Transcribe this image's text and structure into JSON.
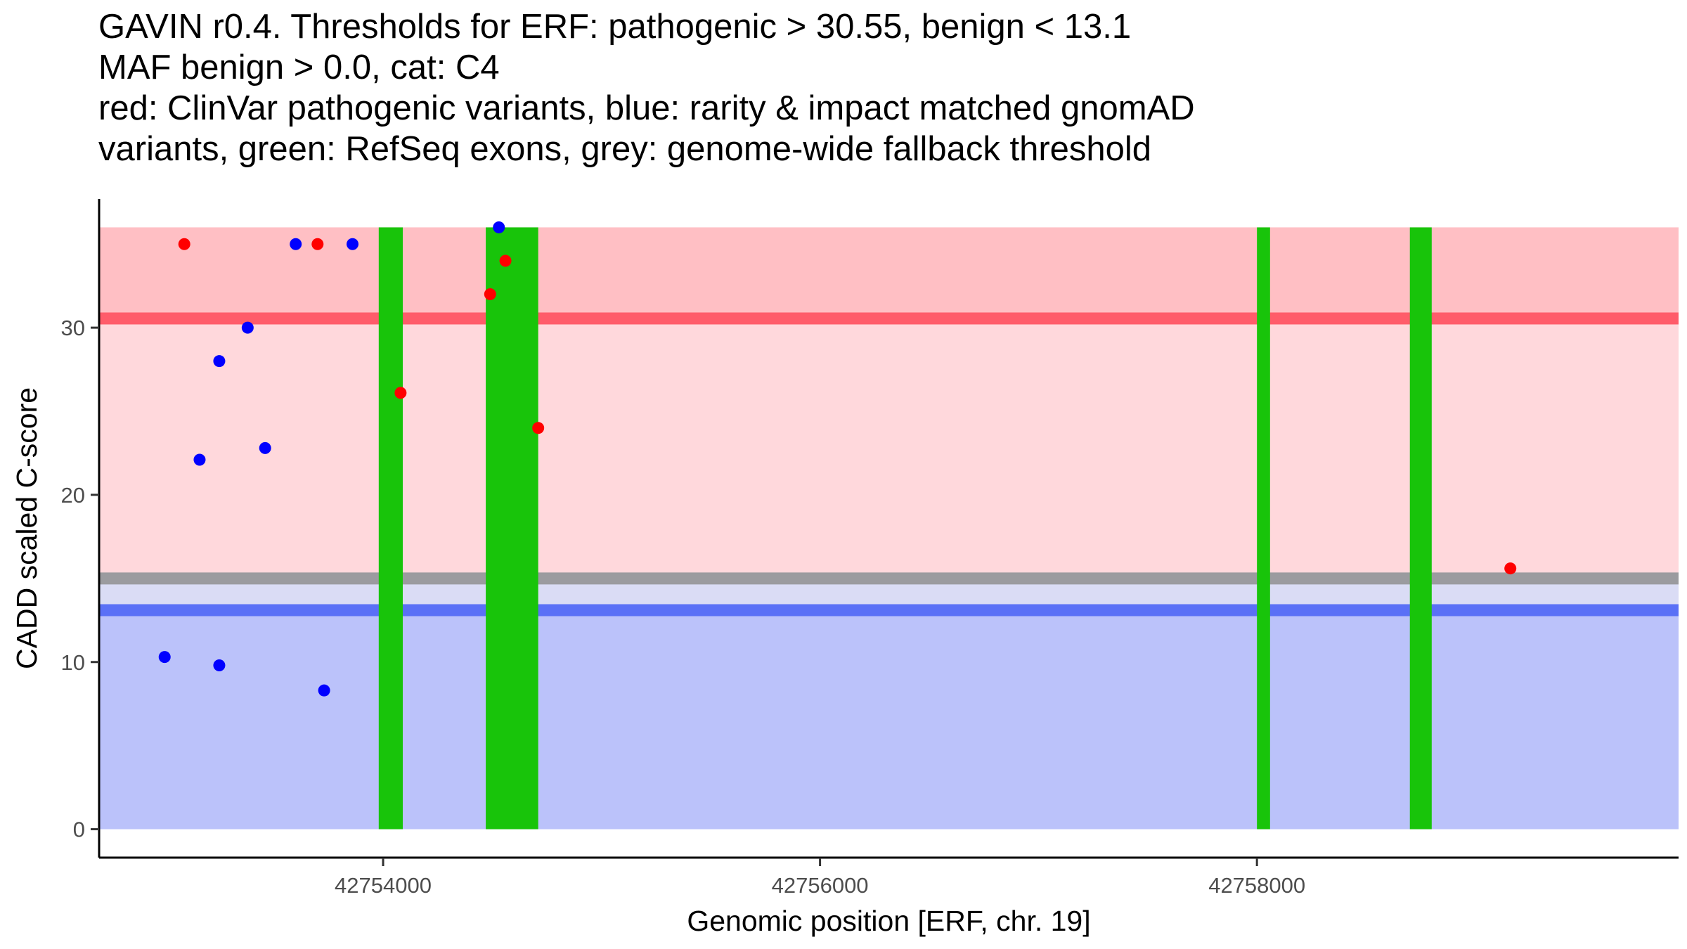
{
  "chart_data": {
    "type": "scatter",
    "title_lines": [
      "GAVIN r0.4. Thresholds for ERF: pathogenic > 30.55, benign < 13.1",
      "MAF benign > 0.0, cat: C4",
      "red: ClinVar pathogenic variants, blue: rarity & impact matched gnomAD",
      "variants, green: RefSeq exons, grey: genome-wide fallback threshold"
    ],
    "xlabel": "Genomic position [ERF, chr. 19]",
    "ylabel": "CADD scaled C-score",
    "xlim": [
      42752700,
      42759930
    ],
    "ylim": [
      -1.7,
      37.7
    ],
    "x_ticks": [
      42754000,
      42756000,
      42758000
    ],
    "x_tick_labels": [
      "42754000",
      "42756000",
      "42758000"
    ],
    "y_ticks": [
      0,
      10,
      20,
      30
    ],
    "y_tick_labels": [
      "0",
      "10",
      "20",
      "30"
    ],
    "regions": [
      {
        "name": "pathogenic-zone",
        "y_from": 30.55,
        "y_to": 36,
        "color": "#ffbfc4"
      },
      {
        "name": "uncertain-zone",
        "y_from": 15,
        "y_to": 30.55,
        "color": "#ffd8dc"
      },
      {
        "name": "gap-zone",
        "y_from": 13.1,
        "y_to": 15,
        "color": "#dadcf5"
      },
      {
        "name": "benign-zone",
        "y_from": 0,
        "y_to": 13.1,
        "color": "#bbc2fa"
      }
    ],
    "threshold_lines": [
      {
        "name": "genome-wide-fallback-threshold",
        "y": 15,
        "color": "#9b9b9f"
      },
      {
        "name": "benign-threshold",
        "y": 13.1,
        "color": "#5a70f6"
      },
      {
        "name": "pathogenic-threshold",
        "y": 30.55,
        "color": "#ff5c6a"
      }
    ],
    "exons": [
      {
        "start": 42753980,
        "end": 42754090
      },
      {
        "start": 42754470,
        "end": 42754710
      },
      {
        "start": 42758000,
        "end": 42758060
      },
      {
        "start": 42758700,
        "end": 42758800
      }
    ],
    "exon_color": "#18c40a",
    "series": [
      {
        "name": "ClinVar pathogenic variants",
        "color": "#ff0000",
        "points": [
          {
            "x": 42753090,
            "y": 35
          },
          {
            "x": 42753700,
            "y": 35
          },
          {
            "x": 42754080,
            "y": 26.1
          },
          {
            "x": 42754490,
            "y": 32
          },
          {
            "x": 42754560,
            "y": 34
          },
          {
            "x": 42754710,
            "y": 24
          },
          {
            "x": 42759160,
            "y": 15.6
          }
        ]
      },
      {
        "name": "rarity & impact matched gnomAD variants",
        "color": "#0000ff",
        "points": [
          {
            "x": 42753160,
            "y": 22.1
          },
          {
            "x": 42753250,
            "y": 28
          },
          {
            "x": 42753380,
            "y": 30
          },
          {
            "x": 42753460,
            "y": 22.8
          },
          {
            "x": 42753600,
            "y": 35
          },
          {
            "x": 42753860,
            "y": 35
          },
          {
            "x": 42754530,
            "y": 36
          },
          {
            "x": 42753000,
            "y": 10.3
          },
          {
            "x": 42753250,
            "y": 9.8
          },
          {
            "x": 42753730,
            "y": 8.3
          }
        ]
      }
    ]
  }
}
